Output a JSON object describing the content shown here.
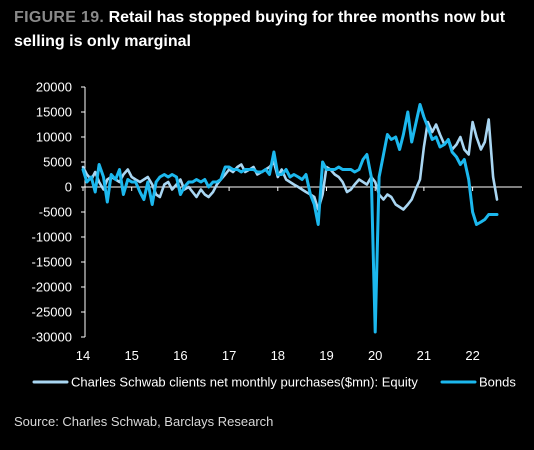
{
  "title": {
    "figure_label": "FIGURE 19.",
    "text": "Retail has stopped buying for three months now but selling is only marginal"
  },
  "source": "Source: Charles Schwab, Barclays Research",
  "colors": {
    "background": "#000000",
    "equity": "#a9d6f2",
    "bonds": "#1cb8ee",
    "axis": "#ffffff",
    "figure_label": "#8a8a8a"
  },
  "chart_data": {
    "type": "line",
    "title": "",
    "xlabel": "",
    "ylabel": "",
    "xlim": [
      2014,
      2022.7
    ],
    "ylim": [
      -30000,
      20000
    ],
    "grid": false,
    "legend_position": "bottom",
    "x_ticks": [
      14,
      15,
      16,
      17,
      18,
      19,
      20,
      21,
      22
    ],
    "y_ticks": [
      20000,
      15000,
      10000,
      5000,
      0,
      -5000,
      -10000,
      -15000,
      -20000,
      -25000,
      -30000
    ],
    "series": [
      {
        "name": "Charles Schwab clients net monthly purchases($mn): Equity",
        "color": "#a9d6f2",
        "stroke_width": 2.6,
        "x": [
          2014.0,
          2014.08,
          2014.17,
          2014.25,
          2014.33,
          2014.42,
          2014.5,
          2014.58,
          2014.67,
          2014.75,
          2014.83,
          2014.92,
          2015.0,
          2015.08,
          2015.17,
          2015.25,
          2015.33,
          2015.42,
          2015.5,
          2015.58,
          2015.67,
          2015.75,
          2015.83,
          2015.92,
          2016.0,
          2016.08,
          2016.17,
          2016.25,
          2016.33,
          2016.42,
          2016.5,
          2016.58,
          2016.67,
          2016.75,
          2016.83,
          2016.92,
          2017.0,
          2017.08,
          2017.17,
          2017.25,
          2017.33,
          2017.42,
          2017.5,
          2017.58,
          2017.67,
          2017.75,
          2017.83,
          2017.92,
          2018.0,
          2018.08,
          2018.17,
          2018.25,
          2018.33,
          2018.42,
          2018.5,
          2018.58,
          2018.67,
          2018.75,
          2018.83,
          2018.92,
          2019.0,
          2019.08,
          2019.17,
          2019.25,
          2019.33,
          2019.42,
          2019.5,
          2019.58,
          2019.67,
          2019.75,
          2019.83,
          2019.92,
          2020.0,
          2020.08,
          2020.17,
          2020.25,
          2020.33,
          2020.42,
          2020.5,
          2020.58,
          2020.67,
          2020.75,
          2020.83,
          2020.92,
          2021.0,
          2021.08,
          2021.17,
          2021.25,
          2021.33,
          2021.42,
          2021.5,
          2021.58,
          2021.67,
          2021.75,
          2021.83,
          2021.92,
          2022.0,
          2022.08,
          2022.17,
          2022.25,
          2022.33,
          2022.42,
          2022.5
        ],
        "values": [
          4000,
          2500,
          1500,
          3000,
          1000,
          -500,
          1500,
          2000,
          1500,
          1000,
          2500,
          3500,
          2000,
          1500,
          1000,
          1500,
          2000,
          500,
          -1500,
          -2000,
          500,
          1000,
          -500,
          500,
          1500,
          -500,
          0,
          -1000,
          -2000,
          -500,
          -1500,
          -2000,
          -1000,
          500,
          1500,
          2500,
          3500,
          3000,
          4000,
          4500,
          3000,
          3500,
          4000,
          2500,
          3000,
          3500,
          4000,
          5000,
          2000,
          3500,
          1500,
          1000,
          500,
          0,
          -500,
          -1000,
          -1500,
          -2000,
          -4500,
          -1500,
          4000,
          3500,
          2500,
          2000,
          1000,
          -1000,
          -500,
          500,
          1500,
          1000,
          500,
          2000,
          1000,
          -1500,
          -2500,
          -1500,
          -2000,
          -3500,
          -4000,
          -4500,
          -3500,
          -2500,
          -500,
          1500,
          8000,
          13000,
          11000,
          12500,
          10500,
          8500,
          9500,
          7500,
          8500,
          10000,
          7500,
          6500,
          13000,
          10000,
          7500,
          9000,
          13500,
          2000,
          -2500
        ]
      },
      {
        "name": "Bonds",
        "color": "#1cb8ee",
        "stroke_width": 3,
        "x": [
          2014.0,
          2014.08,
          2014.17,
          2014.25,
          2014.33,
          2014.42,
          2014.5,
          2014.58,
          2014.67,
          2014.75,
          2014.83,
          2014.92,
          2015.0,
          2015.08,
          2015.17,
          2015.25,
          2015.33,
          2015.42,
          2015.5,
          2015.58,
          2015.67,
          2015.75,
          2015.83,
          2015.92,
          2016.0,
          2016.08,
          2016.17,
          2016.25,
          2016.33,
          2016.42,
          2016.5,
          2016.58,
          2016.67,
          2016.75,
          2016.83,
          2016.92,
          2017.0,
          2017.08,
          2017.17,
          2017.25,
          2017.33,
          2017.42,
          2017.5,
          2017.58,
          2017.67,
          2017.75,
          2017.83,
          2017.92,
          2018.0,
          2018.08,
          2018.17,
          2018.25,
          2018.33,
          2018.42,
          2018.5,
          2018.58,
          2018.67,
          2018.75,
          2018.83,
          2018.92,
          2019.0,
          2019.08,
          2019.17,
          2019.25,
          2019.33,
          2019.42,
          2019.5,
          2019.58,
          2019.67,
          2019.75,
          2019.83,
          2019.92,
          2020.0,
          2020.08,
          2020.17,
          2020.25,
          2020.33,
          2020.42,
          2020.5,
          2020.58,
          2020.67,
          2020.75,
          2020.83,
          2020.92,
          2021.0,
          2021.08,
          2021.17,
          2021.25,
          2021.33,
          2021.42,
          2021.5,
          2021.58,
          2021.67,
          2021.75,
          2021.83,
          2021.92,
          2022.0,
          2022.08,
          2022.17,
          2022.25,
          2022.33,
          2022.42,
          2022.5
        ],
        "values": [
          3500,
          1000,
          2000,
          -1000,
          4500,
          2000,
          -3000,
          2500,
          1500,
          3500,
          -1500,
          1500,
          1000,
          1000,
          -1000,
          -2500,
          1000,
          -3500,
          1000,
          2000,
          2500,
          2000,
          2500,
          2000,
          -1500,
          0,
          1000,
          1000,
          1500,
          1000,
          1500,
          0,
          1000,
          1000,
          1500,
          4000,
          4000,
          3500,
          3500,
          3000,
          3500,
          3500,
          3500,
          3000,
          3000,
          3500,
          2500,
          7000,
          2500,
          2500,
          3500,
          2000,
          2500,
          2000,
          1500,
          2500,
          -1500,
          -3500,
          -7500,
          5000,
          3500,
          3500,
          3500,
          4000,
          3500,
          3500,
          3500,
          3000,
          3500,
          5500,
          6500,
          2000,
          -29000,
          2000,
          6500,
          10500,
          9500,
          10000,
          7500,
          10500,
          15000,
          9000,
          12500,
          16500,
          14000,
          12000,
          9500,
          10000,
          8000,
          8500,
          9500,
          7000,
          6000,
          4500,
          5500,
          1500,
          -5000,
          -7500,
          -7000,
          -6500,
          -5500,
          -5500,
          -5500
        ]
      }
    ]
  }
}
